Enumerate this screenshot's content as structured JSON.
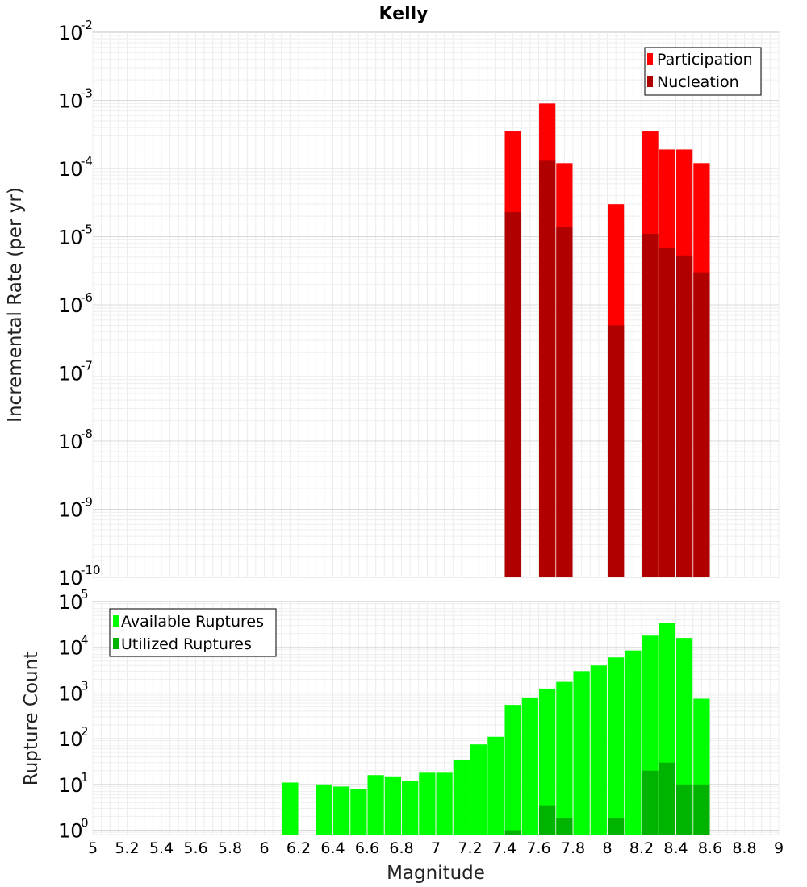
{
  "chart_title": "Kelly",
  "chart_data": [
    {
      "type": "bar",
      "ylabel": "Incremental Rate (per yr)",
      "yscale": "log",
      "ylim": [
        1e-10,
        0.01
      ],
      "xlim": [
        5,
        9
      ],
      "grid": true,
      "legend_position": "top-right",
      "y_ticks": [
        {
          "base": "10",
          "exp": "-10",
          "value": 1e-10
        },
        {
          "base": "10",
          "exp": "-9",
          "value": 1e-09
        },
        {
          "base": "10",
          "exp": "-8",
          "value": 1e-08
        },
        {
          "base": "10",
          "exp": "-7",
          "value": 1e-07
        },
        {
          "base": "10",
          "exp": "-6",
          "value": 1e-06
        },
        {
          "base": "10",
          "exp": "-5",
          "value": 1e-05
        },
        {
          "base": "10",
          "exp": "-4",
          "value": 0.0001
        },
        {
          "base": "10",
          "exp": "-3",
          "value": 0.001
        },
        {
          "base": "10",
          "exp": "-2",
          "value": 0.01
        }
      ],
      "series": [
        {
          "name": "Participation",
          "color": "#ff0000",
          "points": [
            {
              "x": 7.45,
              "y": 0.00035
            },
            {
              "x": 7.65,
              "y": 0.0009
            },
            {
              "x": 7.75,
              "y": 0.00012
            },
            {
              "x": 8.05,
              "y": 3e-05
            },
            {
              "x": 8.25,
              "y": 0.00035
            },
            {
              "x": 8.35,
              "y": 0.00019
            },
            {
              "x": 8.45,
              "y": 0.00019
            },
            {
              "x": 8.55,
              "y": 0.00012
            }
          ]
        },
        {
          "name": "Nucleation",
          "color": "#b00000",
          "points": [
            {
              "x": 7.45,
              "y": 2.3e-05
            },
            {
              "x": 7.65,
              "y": 0.00013
            },
            {
              "x": 7.75,
              "y": 1.4e-05
            },
            {
              "x": 8.05,
              "y": 5e-07
            },
            {
              "x": 8.25,
              "y": 1.1e-05
            },
            {
              "x": 8.35,
              "y": 6.8e-06
            },
            {
              "x": 8.45,
              "y": 5.3e-06
            },
            {
              "x": 8.55,
              "y": 3e-06
            }
          ]
        }
      ]
    },
    {
      "type": "bar",
      "xlabel": "Magnitude",
      "ylabel": "Rupture Count",
      "yscale": "log",
      "ylim": [
        0.8,
        100000
      ],
      "xlim": [
        5,
        9
      ],
      "grid": true,
      "legend_position": "top-left",
      "x_ticks": [
        "5",
        "5.2",
        "5.4",
        "5.6",
        "5.8",
        "6",
        "6.2",
        "6.4",
        "6.6",
        "6.8",
        "7",
        "7.2",
        "7.4",
        "7.6",
        "7.8",
        "8",
        "8.2",
        "8.4",
        "8.6",
        "8.8",
        "9"
      ],
      "y_ticks": [
        {
          "base": "10",
          "exp": "0",
          "value": 1
        },
        {
          "base": "10",
          "exp": "1",
          "value": 10
        },
        {
          "base": "10",
          "exp": "2",
          "value": 100
        },
        {
          "base": "10",
          "exp": "3",
          "value": 1000
        },
        {
          "base": "10",
          "exp": "4",
          "value": 10000
        },
        {
          "base": "10",
          "exp": "5",
          "value": 100000
        }
      ],
      "series": [
        {
          "name": "Available Ruptures",
          "color": "#00ff00",
          "points": [
            {
              "x": 6.15,
              "y": 11
            },
            {
              "x": 6.35,
              "y": 10
            },
            {
              "x": 6.45,
              "y": 9
            },
            {
              "x": 6.55,
              "y": 8
            },
            {
              "x": 6.65,
              "y": 16
            },
            {
              "x": 6.75,
              "y": 15
            },
            {
              "x": 6.85,
              "y": 12
            },
            {
              "x": 6.95,
              "y": 18
            },
            {
              "x": 7.05,
              "y": 18
            },
            {
              "x": 7.15,
              "y": 35
            },
            {
              "x": 7.25,
              "y": 75
            },
            {
              "x": 7.35,
              "y": 110
            },
            {
              "x": 7.45,
              "y": 550
            },
            {
              "x": 7.55,
              "y": 800
            },
            {
              "x": 7.65,
              "y": 1250
            },
            {
              "x": 7.75,
              "y": 1750
            },
            {
              "x": 7.85,
              "y": 3000
            },
            {
              "x": 7.95,
              "y": 4000
            },
            {
              "x": 8.05,
              "y": 6000
            },
            {
              "x": 8.15,
              "y": 8500
            },
            {
              "x": 8.25,
              "y": 18000
            },
            {
              "x": 8.35,
              "y": 34000
            },
            {
              "x": 8.45,
              "y": 16000
            },
            {
              "x": 8.55,
              "y": 750
            }
          ]
        },
        {
          "name": "Utilized Ruptures",
          "color": "#00b300",
          "points": [
            {
              "x": 7.45,
              "y": 1
            },
            {
              "x": 7.65,
              "y": 3.5
            },
            {
              "x": 7.75,
              "y": 1.8
            },
            {
              "x": 8.05,
              "y": 1.8
            },
            {
              "x": 8.25,
              "y": 20
            },
            {
              "x": 8.35,
              "y": 30
            },
            {
              "x": 8.45,
              "y": 10
            },
            {
              "x": 8.55,
              "y": 10
            }
          ]
        }
      ]
    }
  ]
}
